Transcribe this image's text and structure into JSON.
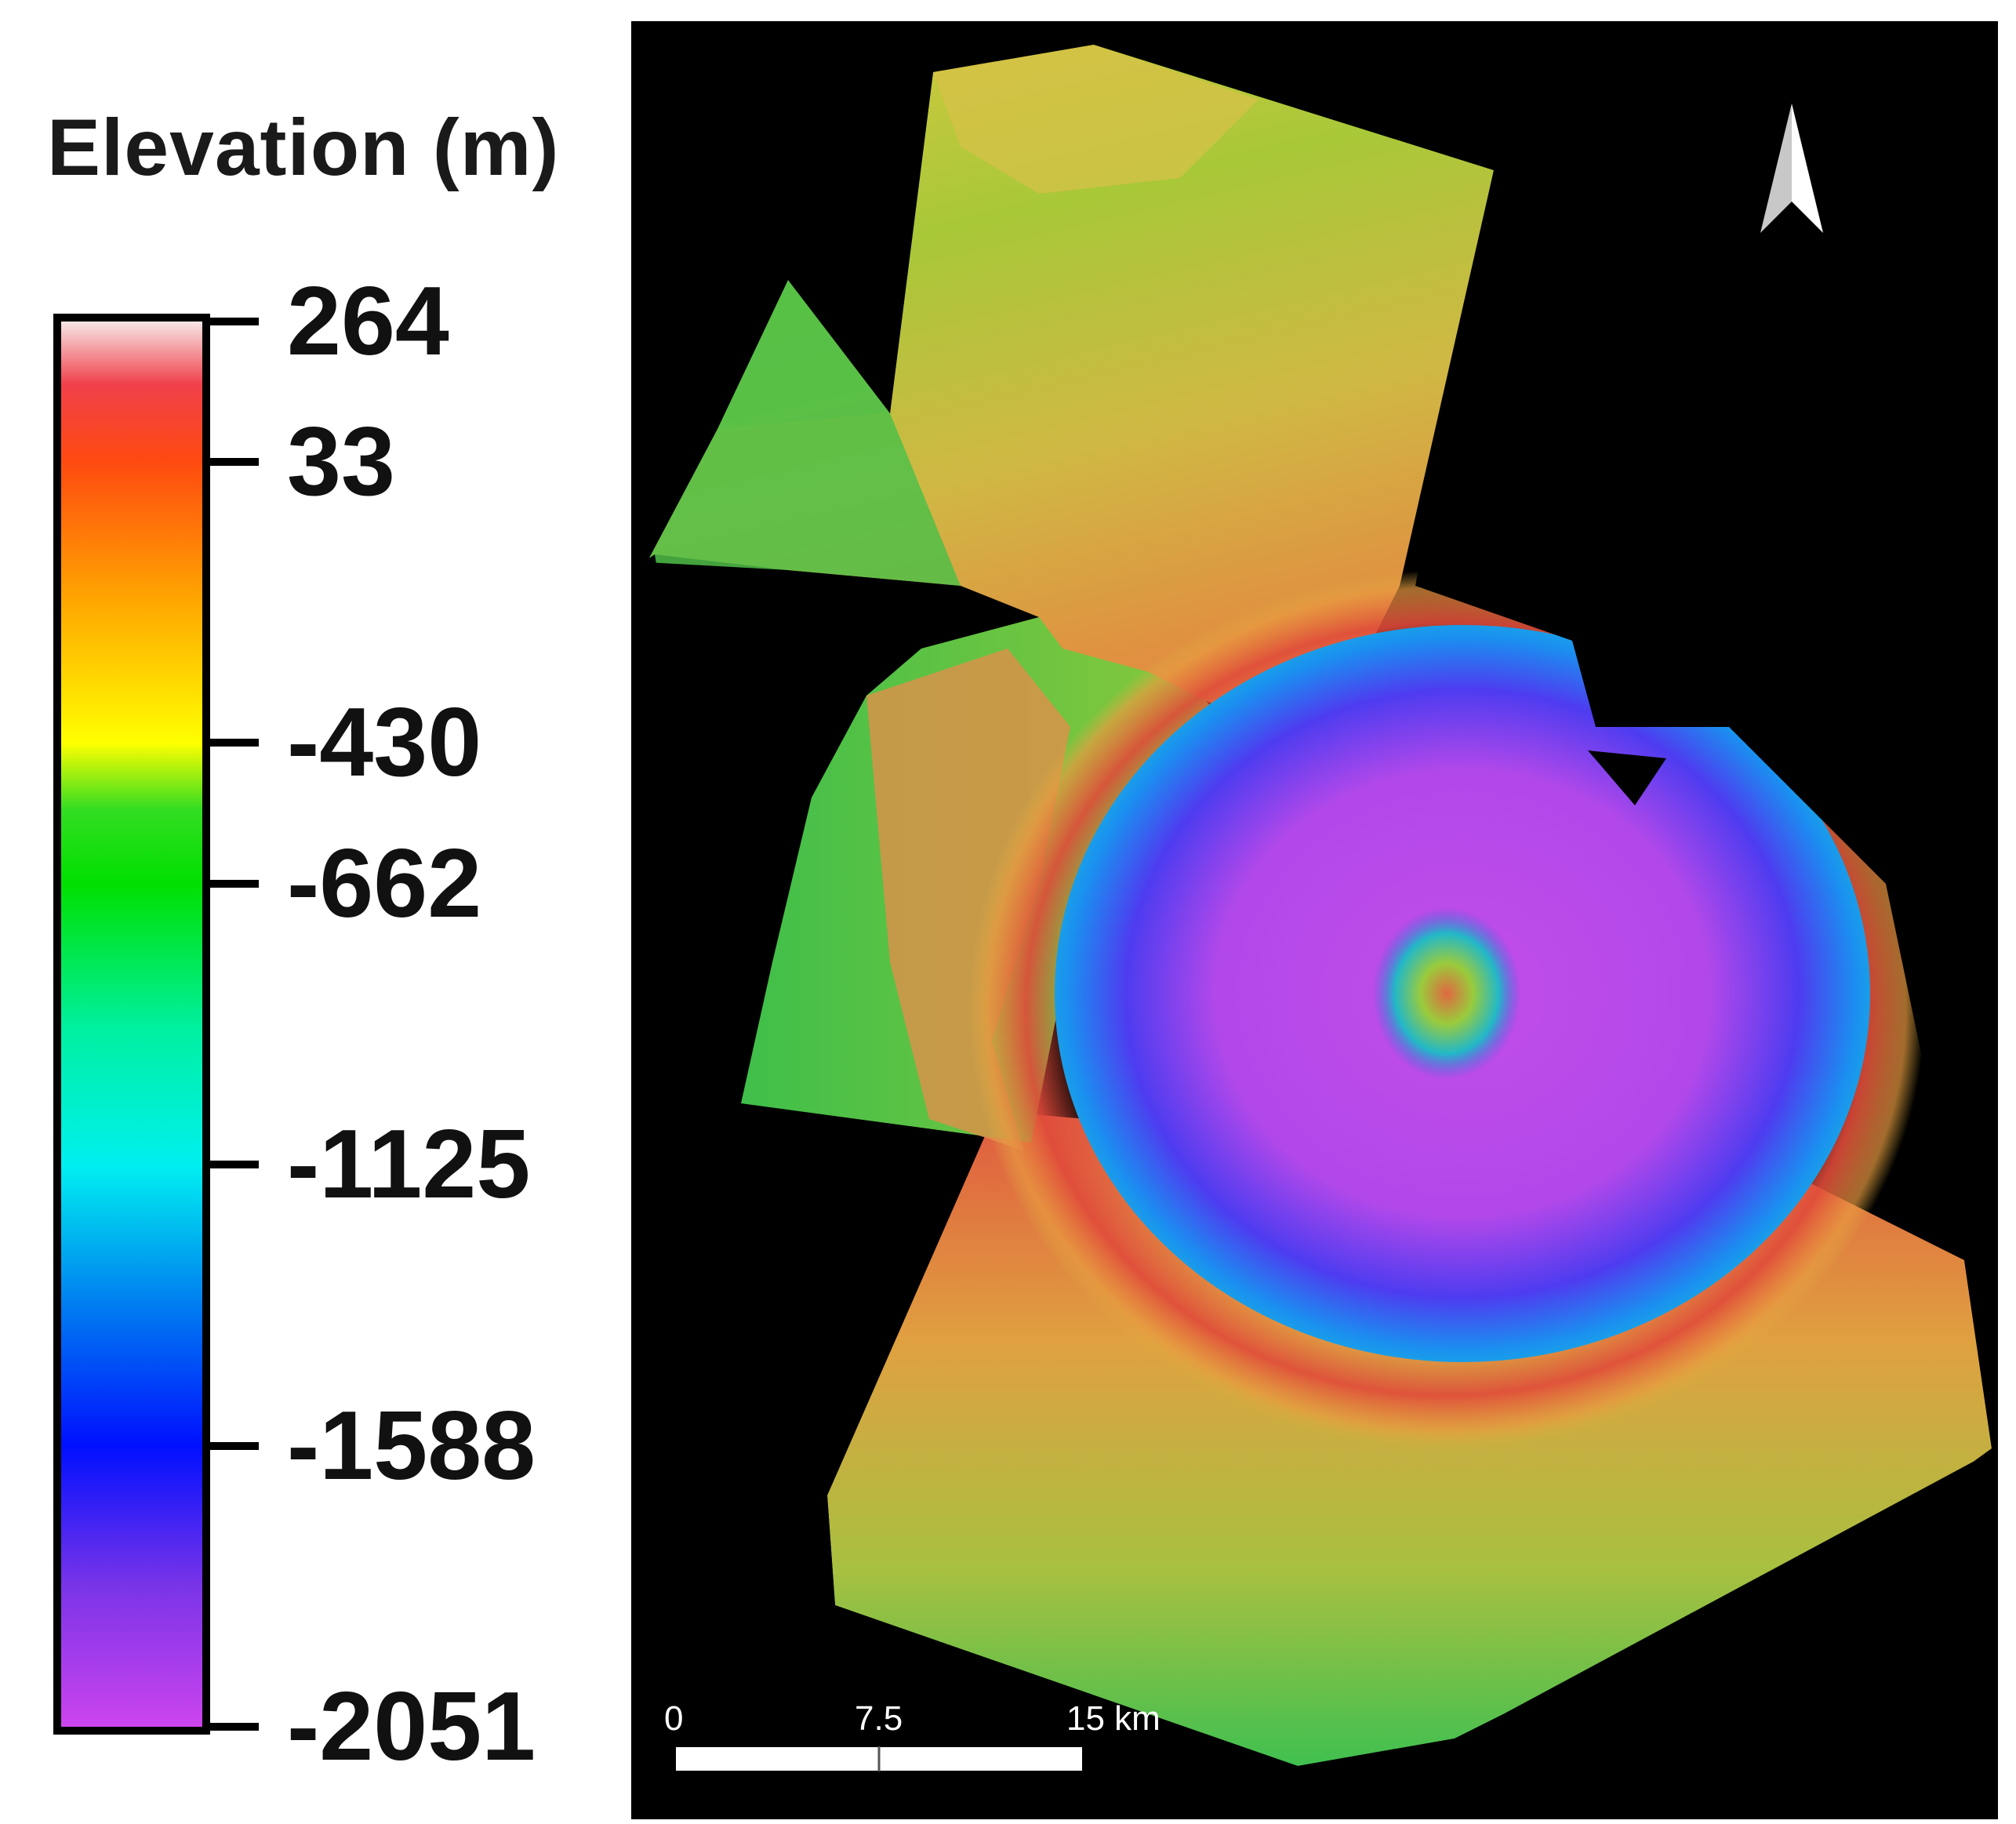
{
  "legend": {
    "title": "Elevation (m)",
    "ticks": [
      {
        "label": "264",
        "value": 264
      },
      {
        "label": "33",
        "value": 33
      },
      {
        "label": "-430",
        "value": -430
      },
      {
        "label": "-662",
        "value": -662
      },
      {
        "label": "-1125",
        "value": -1125
      },
      {
        "label": "-1588",
        "value": -1588
      },
      {
        "label": "-2051",
        "value": -2051
      }
    ],
    "min": -2051,
    "max": 264,
    "gradient_stops": [
      {
        "value": 264,
        "color": "#f7e6e6"
      },
      {
        "value": 160,
        "color": "#f0404a"
      },
      {
        "value": 33,
        "color": "#ff4a10"
      },
      {
        "value": -200,
        "color": "#ffa800"
      },
      {
        "value": -430,
        "color": "#ffff00"
      },
      {
        "value": -540,
        "color": "#33dd22"
      },
      {
        "value": -662,
        "color": "#00e000"
      },
      {
        "value": -900,
        "color": "#00f0a0"
      },
      {
        "value": -1125,
        "color": "#00f0f0"
      },
      {
        "value": -1350,
        "color": "#0080f0"
      },
      {
        "value": -1588,
        "color": "#0010ff"
      },
      {
        "value": -1820,
        "color": "#7a34e8"
      },
      {
        "value": -2051,
        "color": "#cc44ee"
      }
    ]
  },
  "map": {
    "background_color": "#000000",
    "north_arrow": "north-arrow-icon",
    "scale_bar": {
      "labels": [
        "0",
        "7.5",
        "15 km"
      ],
      "values_km": [
        0,
        7.5,
        15
      ]
    }
  }
}
